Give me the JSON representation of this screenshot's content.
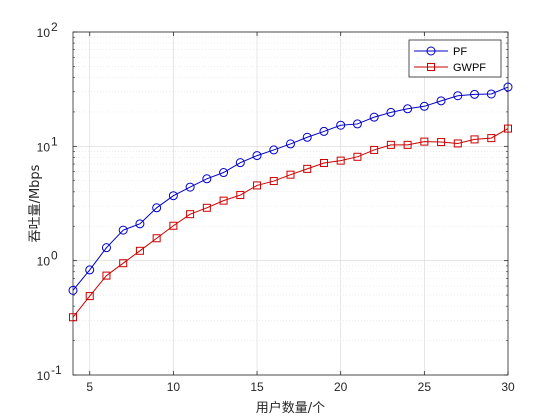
{
  "chart_data": {
    "type": "line",
    "title": "",
    "xlabel": "用户数量/个",
    "ylabel": "吞吐量/Mbps",
    "xlim": [
      4,
      30
    ],
    "ylim": [
      0.1,
      100
    ],
    "yscale": "log",
    "grid": true,
    "legend_position": "top-right",
    "xticks": [
      "5",
      "10",
      "15",
      "20",
      "25",
      "30"
    ],
    "yticks": [
      {
        "base": "10",
        "exp": "-1",
        "value": 0.1
      },
      {
        "base": "10",
        "exp": "0",
        "value": 1
      },
      {
        "base": "10",
        "exp": "1",
        "value": 10
      },
      {
        "base": "10",
        "exp": "2",
        "value": 100
      }
    ],
    "x": [
      4,
      5,
      6,
      7,
      8,
      9,
      10,
      11,
      12,
      13,
      14,
      15,
      16,
      17,
      18,
      19,
      20,
      21,
      22,
      23,
      24,
      25,
      26,
      27,
      28,
      29,
      30
    ],
    "series": [
      {
        "name": "PF",
        "color": "#0000cc",
        "marker": "circle",
        "values": [
          0.55,
          0.83,
          1.3,
          1.85,
          2.1,
          2.9,
          3.7,
          4.4,
          5.2,
          5.9,
          7.2,
          8.3,
          9.3,
          10.5,
          12.0,
          13.5,
          15.3,
          15.7,
          18.0,
          19.8,
          21.3,
          22.4,
          25.0,
          27.7,
          28.5,
          28.7,
          33.0
        ]
      },
      {
        "name": "GWPF",
        "color": "#cc0000",
        "marker": "square",
        "values": [
          0.32,
          0.49,
          0.74,
          0.95,
          1.22,
          1.57,
          2.02,
          2.55,
          2.9,
          3.35,
          3.75,
          4.55,
          4.97,
          5.65,
          6.35,
          7.15,
          7.5,
          8.1,
          9.3,
          10.3,
          10.3,
          11.0,
          10.9,
          10.6,
          11.5,
          11.8,
          14.3
        ]
      }
    ]
  }
}
